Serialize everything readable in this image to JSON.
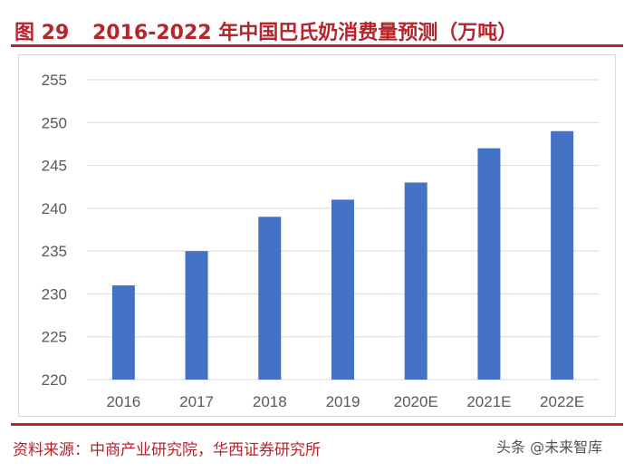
{
  "header": {
    "figure_label": "图 29",
    "title": "2016-2022 年中国巴氏奶消费量预测（万吨）"
  },
  "footer": {
    "source": "资料来源：中商产业研究院，华西证券研究所",
    "watermark": "头条 @未来智库"
  },
  "colors": {
    "accent": "#b5252a",
    "bar": "#4472c4",
    "grid": "#d9d9d9",
    "tick_text": "#595959"
  },
  "chart_data": {
    "type": "bar",
    "title": "",
    "xlabel": "",
    "ylabel": "",
    "categories": [
      "2016",
      "2017",
      "2018",
      "2019",
      "2020E",
      "2021E",
      "2022E"
    ],
    "values": [
      231,
      235,
      239,
      241,
      243,
      247,
      249
    ],
    "ylim": [
      220,
      255
    ],
    "yticks": [
      220,
      225,
      230,
      235,
      240,
      245,
      250,
      255
    ],
    "grid": true,
    "legend": "none"
  }
}
